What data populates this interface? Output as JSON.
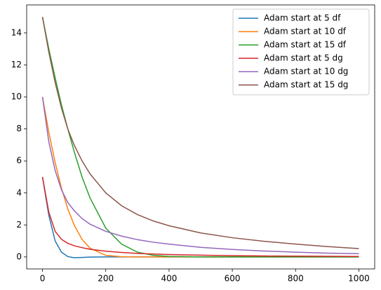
{
  "chart_data": {
    "type": "line",
    "x": [
      0,
      20,
      40,
      60,
      80,
      100,
      125,
      150,
      200,
      250,
      300,
      350,
      400,
      500,
      600,
      700,
      800,
      900,
      1000
    ],
    "series": [
      {
        "name": "Adam start at 5 df",
        "color": "#1f77b4",
        "values": [
          5,
          2.6,
          1.0,
          0.3,
          0.02,
          -0.05,
          -0.03,
          -0.01,
          0,
          0,
          0,
          0,
          0,
          0,
          0,
          0,
          0,
          0,
          0
        ]
      },
      {
        "name": "Adam start at 10 df",
        "color": "#ff7f0e",
        "values": [
          10,
          7.8,
          5.9,
          4.3,
          3.0,
          2.0,
          1.1,
          0.55,
          0.1,
          0.01,
          0,
          0,
          0,
          0,
          0,
          0,
          0,
          0,
          0
        ]
      },
      {
        "name": "Adam start at 15 df",
        "color": "#2ca02c",
        "values": [
          15,
          13,
          11.2,
          9.5,
          8.0,
          6.6,
          5.0,
          3.7,
          1.8,
          0.8,
          0.3,
          0.1,
          0.03,
          0,
          0,
          0,
          0,
          0,
          0
        ]
      },
      {
        "name": "Adam start at 5 dg",
        "color": "#d62728",
        "values": [
          5,
          2.8,
          1.6,
          1.1,
          0.85,
          0.7,
          0.58,
          0.48,
          0.36,
          0.28,
          0.22,
          0.18,
          0.15,
          0.11,
          0.08,
          0.06,
          0.05,
          0.04,
          0.03
        ]
      },
      {
        "name": "Adam start at 10 dg",
        "color": "#9467bd",
        "values": [
          10,
          7.2,
          5.4,
          4.2,
          3.4,
          2.9,
          2.4,
          2.05,
          1.6,
          1.3,
          1.08,
          0.92,
          0.8,
          0.6,
          0.47,
          0.37,
          0.3,
          0.24,
          0.2
        ]
      },
      {
        "name": "Adam start at 15 dg",
        "color": "#8c564b",
        "values": [
          15,
          12.8,
          10.9,
          9.3,
          8.0,
          7.0,
          6.0,
          5.2,
          4.0,
          3.2,
          2.65,
          2.25,
          1.95,
          1.5,
          1.2,
          0.98,
          0.8,
          0.65,
          0.52
        ]
      }
    ],
    "xlim": [
      -50,
      1050
    ],
    "xticks": [
      0,
      200,
      400,
      600,
      800,
      1000
    ],
    "ylim": [
      -0.75,
      15.75
    ],
    "yticks": [
      0,
      2,
      4,
      6,
      8,
      10,
      12,
      14
    ],
    "legend": "upper right"
  }
}
